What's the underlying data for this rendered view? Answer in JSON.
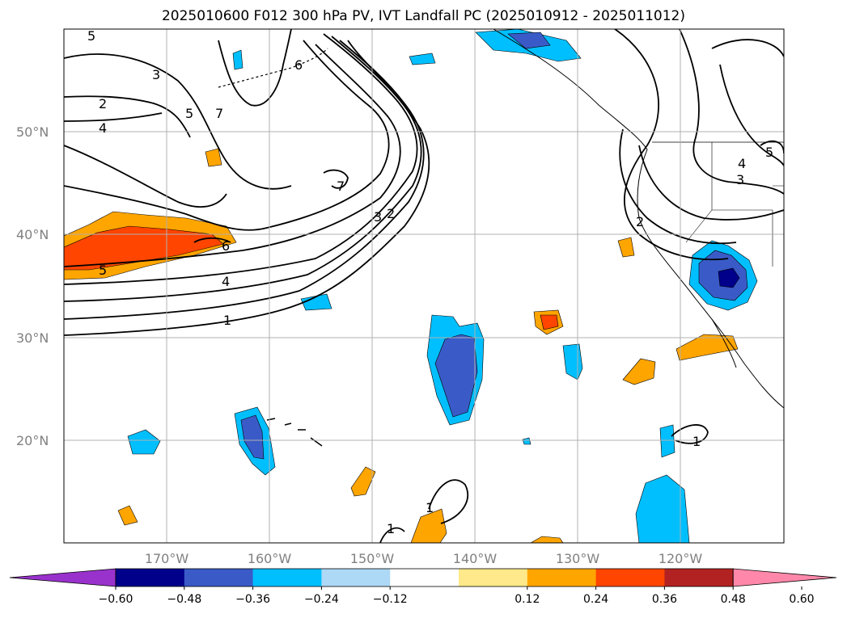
{
  "title": "2025010600 F012 300 hPa PV, IVT Landfall PC (2025010912 - 2025011012)",
  "latitude_labels": [
    "50°N",
    "40°N",
    "30°N",
    "20°N"
  ],
  "longitude_labels": [
    "170°W",
    "160°W",
    "150°W",
    "140°W",
    "130°W",
    "120°W"
  ],
  "colorbar": {
    "ticks": [
      "−0.60",
      "−0.48",
      "−0.36",
      "−0.24",
      "−0.12",
      "0.12",
      "0.24",
      "0.36",
      "0.48",
      "0.60"
    ],
    "colors": [
      "#9932cc",
      "#00008b",
      "#3a5bc7",
      "#00bfff",
      "#add8f6",
      "#ffffff",
      "#ffe98a",
      "#ffa500",
      "#ff4500",
      "#b22222",
      "#ff88aa"
    ]
  },
  "contour_labels": [
    "5",
    "3",
    "2",
    "4",
    "5",
    "7",
    "6",
    "7",
    "3",
    "2",
    "6",
    "4",
    "5",
    "1",
    "1",
    "1",
    "2",
    "4",
    "3",
    "5",
    "1"
  ]
}
